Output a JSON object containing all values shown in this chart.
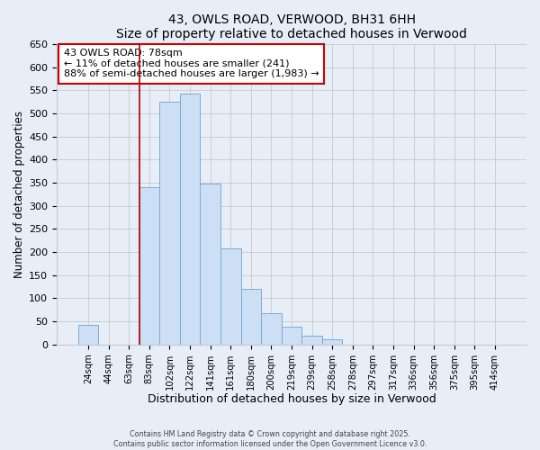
{
  "title": "43, OWLS ROAD, VERWOOD, BH31 6HH",
  "subtitle": "Size of property relative to detached houses in Verwood",
  "xlabel": "Distribution of detached houses by size in Verwood",
  "ylabel": "Number of detached properties",
  "bar_labels": [
    "24sqm",
    "44sqm",
    "63sqm",
    "83sqm",
    "102sqm",
    "122sqm",
    "141sqm",
    "161sqm",
    "180sqm",
    "200sqm",
    "219sqm",
    "239sqm",
    "258sqm",
    "278sqm",
    "297sqm",
    "317sqm",
    "336sqm",
    "356sqm",
    "375sqm",
    "395sqm",
    "414sqm"
  ],
  "bar_values": [
    42,
    0,
    0,
    340,
    525,
    543,
    348,
    208,
    120,
    67,
    38,
    18,
    11,
    0,
    0,
    0,
    0,
    0,
    0,
    0,
    0
  ],
  "bar_color": "#ccdff5",
  "bar_edge_color": "#7aaed6",
  "vline_color": "#aa0000",
  "ylim": [
    0,
    650
  ],
  "yticks": [
    0,
    50,
    100,
    150,
    200,
    250,
    300,
    350,
    400,
    450,
    500,
    550,
    600,
    650
  ],
  "annotation_title": "43 OWLS ROAD: 78sqm",
  "annotation_line1": "← 11% of detached houses are smaller (241)",
  "annotation_line2": "88% of semi-detached houses are larger (1,983) →",
  "annotation_box_color": "white",
  "annotation_box_edge": "#cc0000",
  "footer1": "Contains HM Land Registry data © Crown copyright and database right 2025.",
  "footer2": "Contains public sector information licensed under the Open Government Licence v3.0.",
  "bg_color": "#e8eef8",
  "grid_color": "#c8c8c8",
  "vline_x_index": 3
}
